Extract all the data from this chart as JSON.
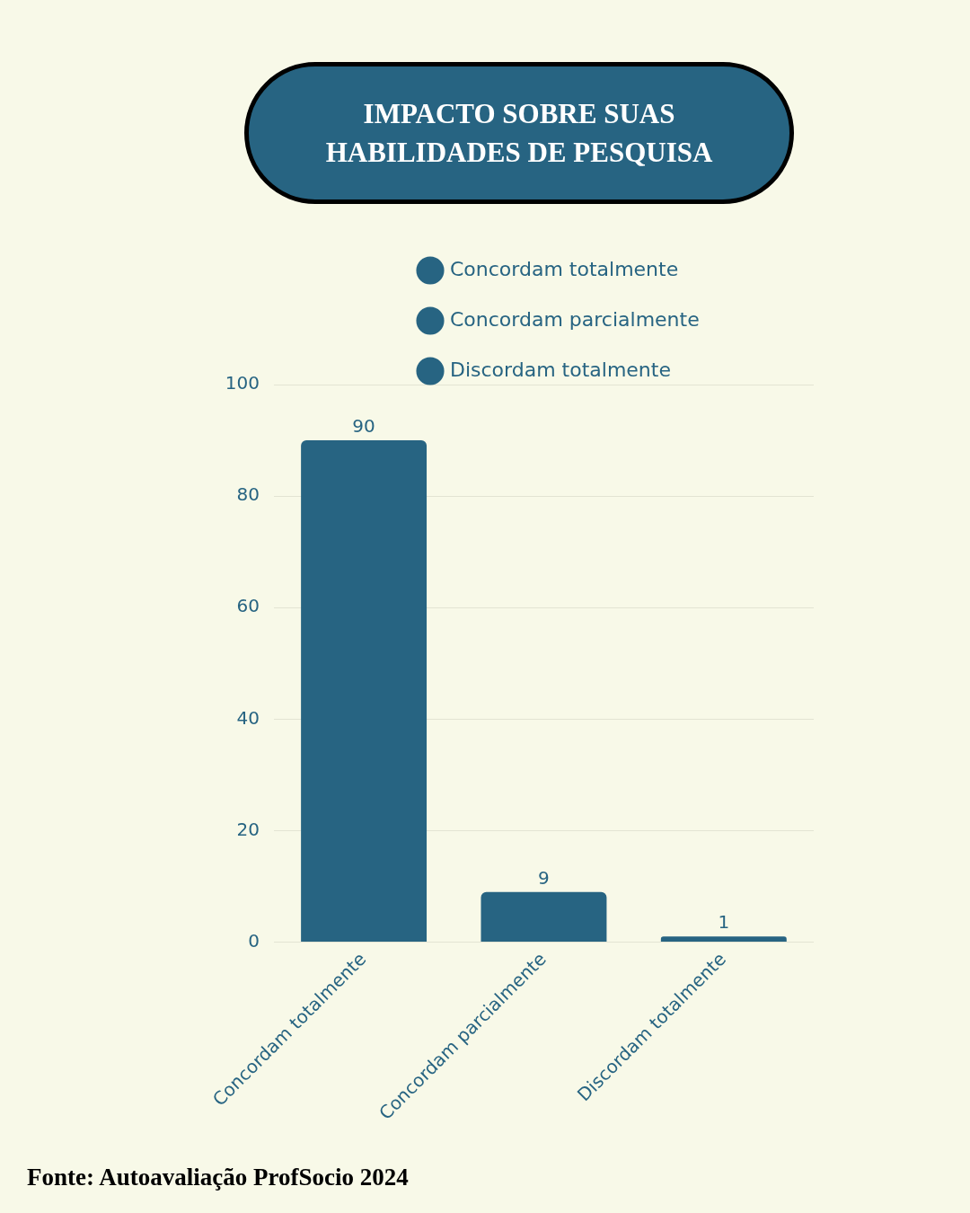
{
  "chart_data": {
    "type": "bar",
    "title": "IMPACTO SOBRE SUAS HABILIDADES DE PESQUISA",
    "categories": [
      "Concordam totalmente",
      "Concordam parcialmente",
      "Discordam totalmente"
    ],
    "series": [
      {
        "name": "Concordam totalmente",
        "color": "#276482",
        "values": [
          90,
          null,
          null
        ]
      },
      {
        "name": "Concordam parcialmente",
        "color": "#276482",
        "values": [
          null,
          9,
          null
        ]
      },
      {
        "name": "Discordam totalmente",
        "color": "#276482",
        "values": [
          null,
          null,
          1
        ]
      }
    ],
    "ylim": [
      0,
      100
    ],
    "yticks": [
      0,
      20,
      40,
      60,
      80,
      100
    ],
    "grid": "y",
    "legend": "top",
    "data_labels": true,
    "annotations": [
      "Fonte: Autoavaliação ProfSocio 2024"
    ]
  }
}
